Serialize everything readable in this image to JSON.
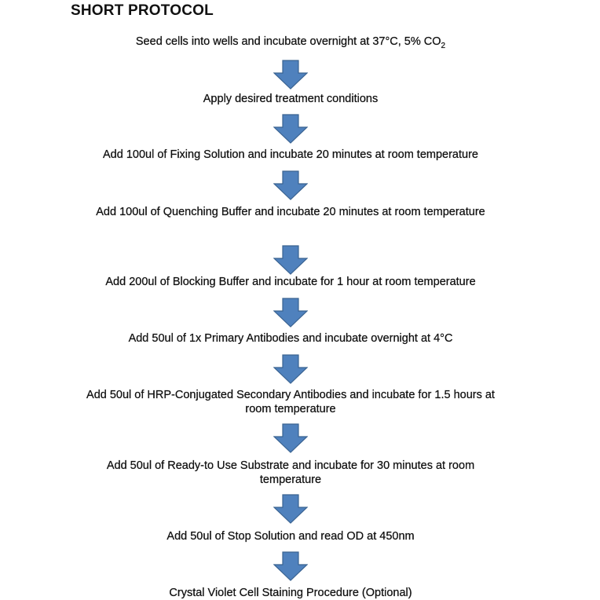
{
  "title": "SHORT PROTOCOL",
  "arrow_color": "#4f81bd",
  "steps": [
    {
      "text": "Seed cells into wells and incubate overnight at 37°C, 5% CO",
      "sub": "2"
    },
    {
      "text": "Apply desired treatment conditions"
    },
    {
      "text": "Add 100ul of Fixing Solution and incubate 20 minutes at room temperature"
    },
    {
      "text": "Add 100ul of Quenching Buffer and incubate 20 minutes at room temperature"
    },
    {
      "text": "Add 200ul of Blocking Buffer and incubate for 1 hour at room temperature"
    },
    {
      "text": "Add 50ul of 1x Primary Antibodies and incubate overnight at 4°C"
    },
    {
      "text": "Add 50ul of HRP-Conjugated Secondary Antibodies and incubate for 1.5 hours at room temperature"
    },
    {
      "text": "Add 50ul of Ready-to Use Substrate and incubate for 30 minutes at room temperature"
    },
    {
      "text": "Add 50ul of Stop Solution and read OD at 450nm"
    },
    {
      "text": "Crystal Violet Cell Staining Procedure (Optional)"
    }
  ]
}
